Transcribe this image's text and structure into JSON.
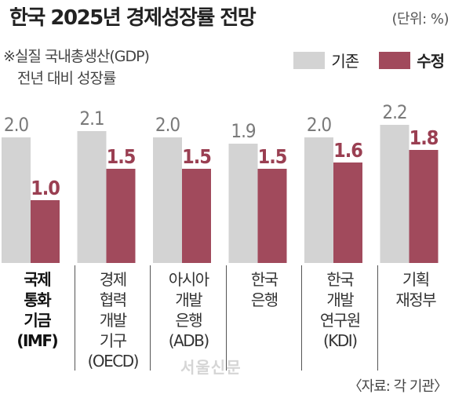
{
  "title": "한국 2025년 경제성장률 전망",
  "unit": "(단위: %)",
  "note": {
    "line1": "※실질 국내총생산(GDP)",
    "line2": "전년 대비 성장률"
  },
  "source": "〈자료: 각 기관〉",
  "watermark": "서울신문",
  "colors": {
    "existing": "#d3d3d3",
    "revised": "#a14a5c",
    "existing_label": "#7a7a7a",
    "revised_label": "#9a3f52"
  },
  "chart_data": {
    "type": "bar",
    "title": "한국 2025년 경제성장률 전망",
    "ylabel": "",
    "ylim": [
      0,
      2.5
    ],
    "categories": [
      [
        "국제",
        "통화",
        "기금",
        "(IMF)"
      ],
      [
        "경제",
        "협력",
        "개발",
        "기구",
        "(OECD)"
      ],
      [
        "아시아",
        "개발",
        "은행",
        "(ADB)"
      ],
      [
        "한국",
        "은행"
      ],
      [
        "한국",
        "개발",
        "연구원",
        "(KDI)"
      ],
      [
        "기획",
        "재정부"
      ]
    ],
    "series": [
      {
        "name": "기존",
        "values": [
          2.0,
          2.1,
          2.0,
          1.9,
          2.0,
          2.2
        ]
      },
      {
        "name": "수정",
        "values": [
          1.0,
          1.5,
          1.5,
          1.5,
          1.6,
          1.8
        ]
      }
    ],
    "legend": "top-right"
  }
}
